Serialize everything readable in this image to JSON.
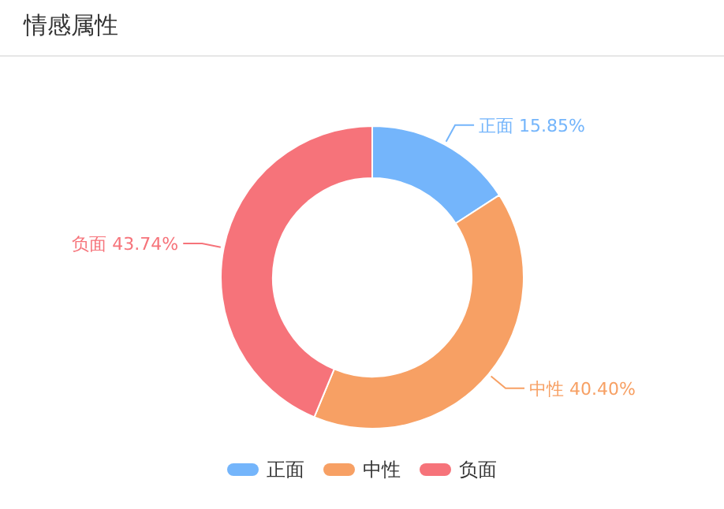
{
  "chart_data": {
    "type": "donut",
    "title": "情感属性",
    "categories": [
      "正面",
      "中性",
      "负面"
    ],
    "values": [
      15.85,
      40.4,
      43.74
    ],
    "value_labels": [
      "15.85%",
      "40.40%",
      "43.74%"
    ],
    "colors": [
      "#74b5fb",
      "#f7a064",
      "#f6737a"
    ],
    "legend": "bottom"
  }
}
